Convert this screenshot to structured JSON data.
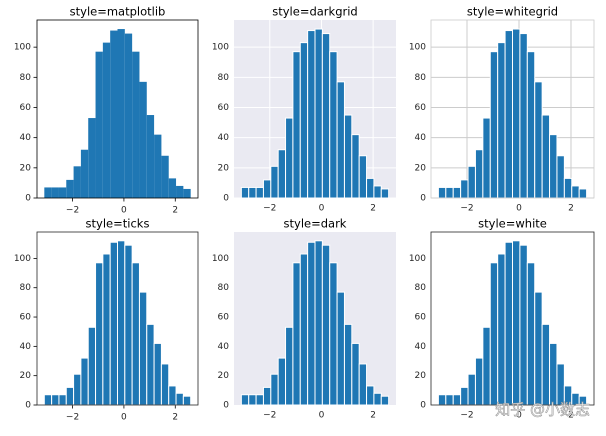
{
  "chart_data": [
    {
      "type": "histogram",
      "title": "style=matplotlib",
      "color": "#1f77b4",
      "background": "#ffffff",
      "grid": false,
      "edgecolor": "none",
      "spines": "#000000",
      "tick_marks": true,
      "bins": [
        -3.1,
        -2.815,
        -2.53,
        -2.245,
        -1.96,
        -1.675,
        -1.39,
        -1.105,
        -0.82,
        -0.535,
        -0.25,
        0.035,
        0.32,
        0.605,
        0.89,
        1.175,
        1.46,
        1.745,
        2.03,
        2.315,
        2.6
      ],
      "counts": [
        7,
        7,
        7,
        12,
        21,
        32,
        53,
        97,
        103,
        111,
        112,
        109,
        97,
        77,
        55,
        42,
        28,
        13,
        8,
        6
      ],
      "xlim": [
        -3.385,
        2.885
      ],
      "ylim": [
        0,
        118
      ],
      "xticks": [
        {
          "value": -2,
          "label": "−2"
        },
        0,
        2
      ],
      "yticks": [
        0,
        20,
        40,
        60,
        80,
        100
      ]
    },
    {
      "type": "histogram",
      "title": "style=darkgrid",
      "color": "#1f77b4",
      "background": "#eaeaf2",
      "grid": "#ffffff",
      "edgecolor": "#ffffff",
      "spines": "none",
      "tick_marks": false,
      "bins": [
        -3.1,
        -2.815,
        -2.53,
        -2.245,
        -1.96,
        -1.675,
        -1.39,
        -1.105,
        -0.82,
        -0.535,
        -0.25,
        0.035,
        0.32,
        0.605,
        0.89,
        1.175,
        1.46,
        1.745,
        2.03,
        2.315,
        2.6
      ],
      "counts": [
        7,
        7,
        7,
        12,
        21,
        32,
        53,
        97,
        103,
        111,
        112,
        109,
        97,
        77,
        55,
        42,
        28,
        13,
        8,
        6
      ],
      "xlim": [
        -3.385,
        2.885
      ],
      "ylim": [
        0,
        118
      ],
      "xticks": [
        {
          "value": -2,
          "label": "−2"
        },
        0,
        2
      ],
      "yticks": [
        0,
        20,
        40,
        60,
        80,
        100
      ]
    },
    {
      "type": "histogram",
      "title": "style=whitegrid",
      "color": "#1f77b4",
      "background": "#ffffff",
      "grid": "#cccccc",
      "edgecolor": "#ffffff",
      "spines": "#cccccc",
      "tick_marks": false,
      "bins": [
        -3.1,
        -2.815,
        -2.53,
        -2.245,
        -1.96,
        -1.675,
        -1.39,
        -1.105,
        -0.82,
        -0.535,
        -0.25,
        0.035,
        0.32,
        0.605,
        0.89,
        1.175,
        1.46,
        1.745,
        2.03,
        2.315,
        2.6
      ],
      "counts": [
        7,
        7,
        7,
        12,
        21,
        32,
        53,
        97,
        103,
        111,
        112,
        109,
        97,
        77,
        55,
        42,
        28,
        13,
        8,
        6
      ],
      "xlim": [
        -3.385,
        2.885
      ],
      "ylim": [
        0,
        118
      ],
      "xticks": [
        {
          "value": -2,
          "label": "−2"
        },
        0,
        2
      ],
      "yticks": [
        0,
        20,
        40,
        60,
        80,
        100
      ]
    },
    {
      "type": "histogram",
      "title": "style=ticks",
      "color": "#1f77b4",
      "background": "#ffffff",
      "grid": false,
      "edgecolor": "#ffffff",
      "spines": "#262626",
      "tick_marks": true,
      "bins": [
        -3.1,
        -2.815,
        -2.53,
        -2.245,
        -1.96,
        -1.675,
        -1.39,
        -1.105,
        -0.82,
        -0.535,
        -0.25,
        0.035,
        0.32,
        0.605,
        0.89,
        1.175,
        1.46,
        1.745,
        2.03,
        2.315,
        2.6
      ],
      "counts": [
        7,
        7,
        7,
        12,
        21,
        32,
        53,
        97,
        103,
        111,
        112,
        109,
        97,
        77,
        55,
        42,
        28,
        13,
        8,
        6
      ],
      "xlim": [
        -3.385,
        2.885
      ],
      "ylim": [
        0,
        118
      ],
      "xticks": [
        {
          "value": -2,
          "label": "−2"
        },
        0,
        2
      ],
      "yticks": [
        0,
        20,
        40,
        60,
        80,
        100
      ]
    },
    {
      "type": "histogram",
      "title": "style=dark",
      "color": "#1f77b4",
      "background": "#eaeaf2",
      "grid": false,
      "edgecolor": "#ffffff",
      "spines": "none",
      "tick_marks": false,
      "bins": [
        -3.1,
        -2.815,
        -2.53,
        -2.245,
        -1.96,
        -1.675,
        -1.39,
        -1.105,
        -0.82,
        -0.535,
        -0.25,
        0.035,
        0.32,
        0.605,
        0.89,
        1.175,
        1.46,
        1.745,
        2.03,
        2.315,
        2.6
      ],
      "counts": [
        7,
        7,
        7,
        12,
        21,
        32,
        53,
        97,
        103,
        111,
        112,
        109,
        97,
        77,
        55,
        42,
        28,
        13,
        8,
        6
      ],
      "xlim": [
        -3.385,
        2.885
      ],
      "ylim": [
        0,
        118
      ],
      "xticks": [
        {
          "value": -2,
          "label": "−2"
        },
        0,
        2
      ],
      "yticks": [
        0,
        20,
        40,
        60,
        80,
        100
      ]
    },
    {
      "type": "histogram",
      "title": "style=white",
      "color": "#1f77b4",
      "background": "#ffffff",
      "grid": false,
      "edgecolor": "#ffffff",
      "spines": "#262626",
      "tick_marks": false,
      "bins": [
        -3.1,
        -2.815,
        -2.53,
        -2.245,
        -1.96,
        -1.675,
        -1.39,
        -1.105,
        -0.82,
        -0.535,
        -0.25,
        0.035,
        0.32,
        0.605,
        0.89,
        1.175,
        1.46,
        1.745,
        2.03,
        2.315,
        2.6
      ],
      "counts": [
        7,
        7,
        7,
        12,
        21,
        32,
        53,
        97,
        103,
        111,
        112,
        109,
        97,
        77,
        55,
        42,
        28,
        13,
        8,
        6
      ],
      "xlim": [
        -3.385,
        2.885
      ],
      "ylim": [
        0,
        118
      ],
      "xticks": [
        {
          "value": -2,
          "label": "−2"
        },
        0,
        2
      ],
      "yticks": [
        0,
        20,
        40,
        60,
        80,
        100
      ]
    }
  ],
  "watermark": "知乎 @小数志"
}
